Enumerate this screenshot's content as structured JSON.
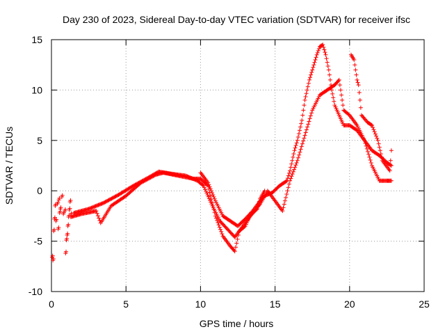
{
  "chart_data": {
    "type": "scatter",
    "title": "Day 230 of 2023, Sidereal Day-to-day VTEC variation (SDTVAR) for receiver ifsc",
    "xlabel": "GPS time / hours",
    "ylabel": "SDTVAR / TECUs",
    "xlim": [
      0,
      25
    ],
    "ylim": [
      -10,
      15
    ],
    "xticks": [
      0,
      5,
      10,
      15,
      20,
      25
    ],
    "yticks": [
      -10,
      -5,
      0,
      5,
      10,
      15
    ],
    "grid": true,
    "marker": "+",
    "color": "#ff0000",
    "series": [
      {
        "name": "scatter-early",
        "points": [
          [
            0.05,
            -6.6
          ],
          [
            0.1,
            -6.9
          ],
          [
            0.15,
            -4.0
          ],
          [
            0.2,
            -2.8
          ],
          [
            0.25,
            -1.5
          ],
          [
            0.3,
            -3.0
          ],
          [
            0.4,
            -1.3
          ],
          [
            0.45,
            -3.8
          ],
          [
            0.5,
            -0.9
          ],
          [
            0.55,
            -2.2
          ],
          [
            0.6,
            -1.8
          ],
          [
            0.7,
            -0.6
          ],
          [
            0.8,
            -2.3
          ],
          [
            0.9,
            -2.0
          ],
          [
            0.95,
            -6.2
          ],
          [
            1.0,
            -4.9
          ],
          [
            1.05,
            -4.4
          ],
          [
            1.1,
            -3.5
          ],
          [
            1.15,
            -2.6
          ],
          [
            1.2,
            -1.9
          ],
          [
            1.25,
            -1.1
          ],
          [
            1.3,
            -2.4
          ]
        ]
      },
      {
        "name": "track-lower",
        "points": [
          [
            1.3,
            -2.6
          ],
          [
            2,
            -2.3
          ],
          [
            3,
            -2.0
          ],
          [
            3.3,
            -3.2
          ],
          [
            4,
            -1.5
          ],
          [
            5,
            -0.5
          ],
          [
            6,
            0.8
          ],
          [
            7,
            1.6
          ],
          [
            7.5,
            1.8
          ],
          [
            8.5,
            1.5
          ],
          [
            9.5,
            1.2
          ],
          [
            10,
            1.2
          ],
          [
            10.5,
            0.5
          ],
          [
            11,
            -2.5
          ],
          [
            11.5,
            -4.5
          ],
          [
            12,
            -5.5
          ],
          [
            12.3,
            -6.0
          ],
          [
            12.6,
            -4.0
          ],
          [
            13,
            -3.5
          ],
          [
            13.3,
            -2.5
          ],
          [
            13.8,
            -1.8
          ],
          [
            14,
            -0.8
          ],
          [
            14.3,
            0.0
          ]
        ]
      },
      {
        "name": "track-middle",
        "points": [
          [
            1.5,
            -2.2
          ],
          [
            2.5,
            -1.8
          ],
          [
            3.5,
            -1.2
          ],
          [
            4.5,
            -0.4
          ],
          [
            5.5,
            0.5
          ],
          [
            6.5,
            1.3
          ],
          [
            7.2,
            1.9
          ],
          [
            8,
            1.7
          ],
          [
            9,
            1.5
          ],
          [
            9.8,
            1.0
          ],
          [
            10.2,
            0.5
          ],
          [
            10.8,
            -1.5
          ],
          [
            11.3,
            -3.0
          ],
          [
            11.8,
            -3.8
          ],
          [
            12.3,
            -4.6
          ],
          [
            12.8,
            -3.6
          ],
          [
            13.5,
            -2.2
          ],
          [
            14,
            -1.3
          ],
          [
            14.5,
            0.0
          ],
          [
            15,
            -1.0
          ],
          [
            15.5,
            -2.0
          ],
          [
            16,
            1.0
          ],
          [
            16.5,
            3.0
          ],
          [
            17,
            5.5
          ],
          [
            17.5,
            8.0
          ],
          [
            18,
            9.5
          ],
          [
            18.5,
            10.0
          ],
          [
            19,
            10.5
          ],
          [
            19.3,
            11.0
          ],
          [
            19.6,
            8.0
          ],
          [
            20,
            7.5
          ],
          [
            20.5,
            6.5
          ],
          [
            21,
            5.0
          ],
          [
            21.5,
            2.5
          ],
          [
            22,
            1.0
          ],
          [
            22.5,
            1.0
          ],
          [
            22.8,
            1.0
          ]
        ]
      },
      {
        "name": "track-upper",
        "points": [
          [
            10,
            1.8
          ],
          [
            10.5,
            0.8
          ],
          [
            11,
            -1.0
          ],
          [
            11.5,
            -2.5
          ],
          [
            12,
            -3.0
          ],
          [
            12.5,
            -3.5
          ],
          [
            13,
            -2.8
          ],
          [
            13.5,
            -2.0
          ],
          [
            14,
            -1.0
          ],
          [
            14.3,
            -0.5
          ],
          [
            14.8,
            -0.2
          ],
          [
            15.3,
            0.5
          ],
          [
            15.8,
            1.0
          ],
          [
            16,
            2.0
          ],
          [
            16.3,
            4.0
          ],
          [
            16.5,
            5.0
          ],
          [
            16.8,
            7.0
          ],
          [
            17,
            9.0
          ],
          [
            17.3,
            11.0
          ],
          [
            17.6,
            12.5
          ],
          [
            17.8,
            13.5
          ],
          [
            18,
            14.3
          ],
          [
            18.2,
            14.5
          ],
          [
            18.4,
            13.5
          ],
          [
            18.6,
            12.0
          ],
          [
            18.8,
            10.0
          ],
          [
            19,
            8.5
          ],
          [
            19.3,
            7.5
          ],
          [
            19.6,
            6.5
          ],
          [
            20,
            6.5
          ],
          [
            20.5,
            6.0
          ],
          [
            21,
            5.0
          ],
          [
            21.5,
            4.0
          ],
          [
            22,
            3.5
          ],
          [
            22.5,
            2.8
          ],
          [
            22.8,
            2.5
          ]
        ]
      },
      {
        "name": "track-late",
        "points": [
          [
            20.1,
            13.5
          ],
          [
            20.3,
            13.0
          ],
          [
            20.5,
            11.0
          ],
          [
            20.6,
            10.5
          ],
          [
            20.8,
            7.5
          ],
          [
            21.2,
            6.8
          ],
          [
            21.5,
            6.5
          ],
          [
            21.9,
            5.0
          ],
          [
            22.2,
            3.0
          ],
          [
            22.7,
            2.0
          ],
          [
            22.8,
            4.0
          ]
        ]
      }
    ]
  }
}
